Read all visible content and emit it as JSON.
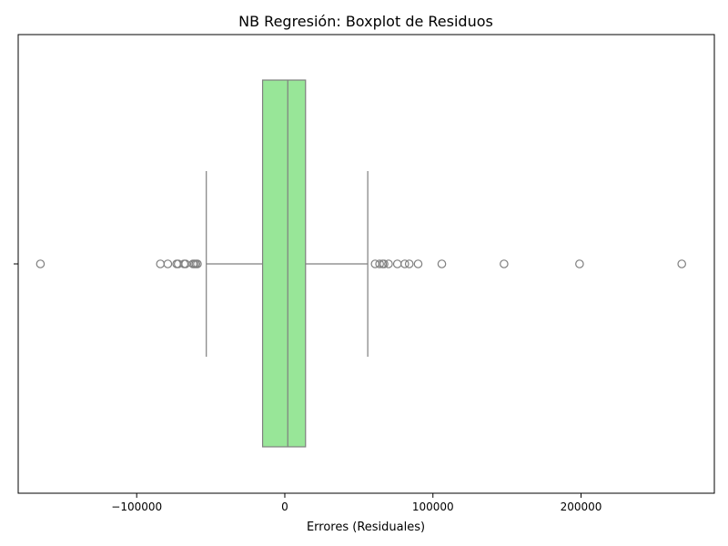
{
  "chart_data": {
    "type": "boxplot",
    "title": "NB Regresión: Boxplot de Residuos",
    "xlabel": "Errores (Residuales)",
    "ylabel": "",
    "xlim": [
      -180000,
      290000
    ],
    "xticks": [
      -100000,
      0,
      100000,
      200000
    ],
    "xtick_labels": [
      "−100000",
      "0",
      "100000",
      "200000"
    ],
    "grid": false,
    "box": {
      "q1": -15000,
      "median": 2000,
      "q3": 14000,
      "whisker_low": -53000,
      "whisker_high": 56000,
      "outliers": [
        -165000,
        -84000,
        -79000,
        -73000,
        -72000,
        -68000,
        -67000,
        -62000,
        -61000,
        -60000,
        -59000,
        61000,
        64000,
        66000,
        67000,
        70000,
        76000,
        81000,
        84000,
        90000,
        106000,
        148000,
        199000,
        268000
      ]
    },
    "colors": {
      "box_fill": "#98e698",
      "line": "#7f7f7f"
    }
  }
}
